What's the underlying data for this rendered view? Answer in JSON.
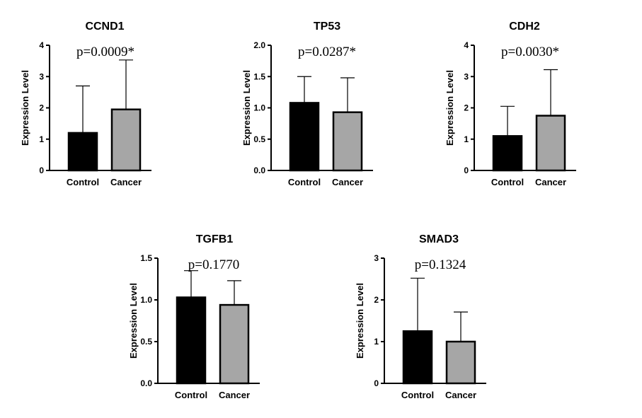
{
  "chart_data": [
    {
      "type": "bar",
      "title": "CCND1",
      "ylabel": "Expression Level",
      "categories": [
        "Control",
        "Cancer"
      ],
      "values": [
        1.2,
        1.95
      ],
      "error_upper": [
        2.7,
        3.53
      ],
      "colors": [
        "#000000",
        "#a6a6a6"
      ],
      "ylim": [
        0,
        4
      ],
      "yticks": [
        "0",
        "1",
        "2",
        "3",
        "4"
      ],
      "annotation": "p=0.0009*"
    },
    {
      "type": "bar",
      "title": "TP53",
      "ylabel": "Expression Level",
      "categories": [
        "Control",
        "Cancer"
      ],
      "values": [
        1.08,
        0.93
      ],
      "error_upper": [
        1.5,
        1.48
      ],
      "colors": [
        "#000000",
        "#a6a6a6"
      ],
      "ylim": [
        0,
        2
      ],
      "yticks": [
        "0.0",
        "0.5",
        "1.0",
        "1.5",
        "2.0"
      ],
      "annotation": "p=0.0287*"
    },
    {
      "type": "bar",
      "title": "CDH2",
      "ylabel": "Expression Level",
      "categories": [
        "Control",
        "Cancer"
      ],
      "values": [
        1.1,
        1.75
      ],
      "error_upper": [
        2.05,
        3.22
      ],
      "colors": [
        "#000000",
        "#a6a6a6"
      ],
      "ylim": [
        0,
        4
      ],
      "yticks": [
        "0",
        "1",
        "2",
        "3",
        "4"
      ],
      "annotation": "p=0.0030*"
    },
    {
      "type": "bar",
      "title": "TGFB1",
      "ylabel": "Expression Level",
      "categories": [
        "Control",
        "Cancer"
      ],
      "values": [
        1.03,
        0.94
      ],
      "error_upper": [
        1.35,
        1.23
      ],
      "colors": [
        "#000000",
        "#a6a6a6"
      ],
      "ylim": [
        0,
        1.5
      ],
      "yticks": [
        "0.0",
        "0.5",
        "1.0",
        "1.5"
      ],
      "annotation": "p=0.1770"
    },
    {
      "type": "bar",
      "title": "SMAD3",
      "ylabel": "Expression Level",
      "categories": [
        "Control",
        "Cancer"
      ],
      "values": [
        1.25,
        1.0
      ],
      "error_upper": [
        2.52,
        1.71
      ],
      "colors": [
        "#000000",
        "#a6a6a6"
      ],
      "ylim": [
        0,
        3
      ],
      "yticks": [
        "0",
        "1",
        "2",
        "3"
      ],
      "annotation": "p=0.1324"
    }
  ]
}
